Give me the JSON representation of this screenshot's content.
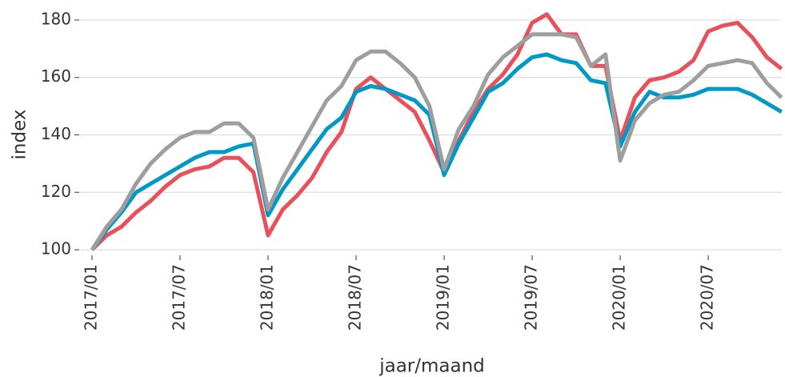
{
  "chart_data": {
    "type": "line",
    "xlabel": "jaar/maand",
    "ylabel": "index",
    "categories": [
      "2017/01",
      null,
      null,
      null,
      null,
      null,
      "2017/07",
      null,
      null,
      null,
      null,
      null,
      "2018/01",
      null,
      null,
      null,
      null,
      null,
      "2018/07",
      null,
      null,
      null,
      null,
      null,
      "2019/01",
      null,
      null,
      null,
      null,
      null,
      "2019/07",
      null,
      null,
      null,
      null,
      null,
      "2020/01",
      null,
      null,
      null,
      null,
      null,
      "2020/07",
      null,
      null,
      null,
      null,
      null
    ],
    "series": [
      {
        "color": "#e8505b",
        "values": [
          100,
          105,
          108,
          113,
          117,
          122,
          126,
          128,
          129,
          132,
          132,
          127,
          105,
          114,
          119,
          125,
          134,
          141,
          156,
          160,
          156,
          152,
          148,
          138,
          127,
          138,
          148,
          156,
          161,
          168,
          179,
          182,
          175,
          175,
          164,
          164,
          138,
          153,
          159,
          160,
          162,
          166,
          176,
          178,
          179,
          174,
          167,
          163
        ]
      },
      {
        "color": "#0099c6",
        "values": [
          100,
          107,
          113,
          120,
          123,
          126,
          129,
          132,
          134,
          134,
          136,
          137,
          112,
          121,
          128,
          135,
          142,
          146,
          155,
          157,
          156,
          154,
          152,
          147,
          126,
          137,
          146,
          155,
          158,
          163,
          167,
          168,
          166,
          165,
          159,
          158,
          136,
          148,
          155,
          153,
          153,
          154,
          156,
          156,
          156,
          154,
          151,
          148
        ]
      },
      {
        "color": "#9e9e9e",
        "values": [
          100,
          108,
          114,
          123,
          130,
          135,
          139,
          141,
          141,
          144,
          144,
          139,
          114,
          125,
          134,
          143,
          152,
          157,
          166,
          169,
          169,
          165,
          160,
          150,
          128,
          142,
          150,
          161,
          167,
          171,
          175,
          175,
          175,
          174,
          164,
          168,
          131,
          145,
          151,
          154,
          155,
          159,
          164,
          165,
          166,
          165,
          158,
          153
        ]
      }
    ],
    "ylim": [
      96,
      184
    ],
    "yticks": [
      100,
      120,
      140,
      160,
      180
    ],
    "grid": true
  }
}
